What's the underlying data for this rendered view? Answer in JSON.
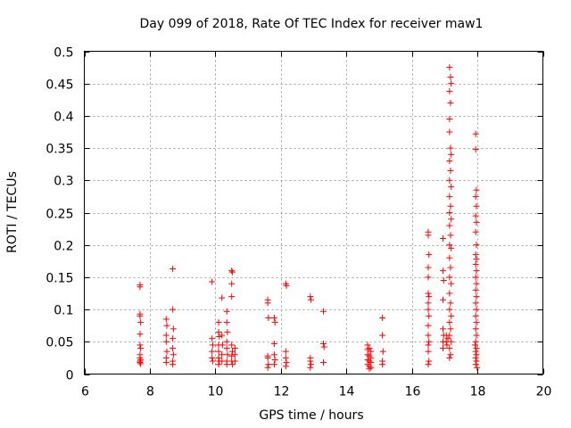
{
  "chart_data": {
    "type": "scatter",
    "title": "Day 099 of 2018, Rate Of TEC Index for receiver maw1",
    "xlabel": "GPS time / hours",
    "ylabel": "ROTI / TECUs",
    "xlim": [
      6,
      20
    ],
    "ylim": [
      0,
      0.5
    ],
    "xticks": [
      6,
      8,
      10,
      12,
      14,
      16,
      18,
      20
    ],
    "yticks": [
      0,
      0.05,
      0.1,
      0.15,
      0.2,
      0.25,
      0.3,
      0.35,
      0.4,
      0.45,
      0.5
    ],
    "xtick_labels": [
      "6",
      "8",
      "10",
      "12",
      "14",
      "16",
      "18",
      "20"
    ],
    "ytick_labels": [
      "0",
      "0.05",
      "0.1",
      "0.15",
      "0.2",
      "0.25",
      "0.3",
      "0.35",
      "0.4",
      "0.45",
      "0.5"
    ],
    "grid": true,
    "marker": "+",
    "series": [
      {
        "name": "maw1",
        "color": "#ff0000",
        "points": [
          [
            7.7,
            0.135
          ],
          [
            7.7,
            0.138
          ],
          [
            7.7,
            0.093
          ],
          [
            7.7,
            0.09
          ],
          [
            7.72,
            0.08
          ],
          [
            7.7,
            0.062
          ],
          [
            7.7,
            0.045
          ],
          [
            7.72,
            0.04
          ],
          [
            7.7,
            0.03
          ],
          [
            7.7,
            0.025
          ],
          [
            7.72,
            0.022
          ],
          [
            7.7,
            0.02
          ],
          [
            7.7,
            0.018
          ],
          [
            7.72,
            0.016
          ],
          [
            8.5,
            0.085
          ],
          [
            8.52,
            0.075
          ],
          [
            8.5,
            0.06
          ],
          [
            8.5,
            0.05
          ],
          [
            8.52,
            0.035
          ],
          [
            8.5,
            0.025
          ],
          [
            8.5,
            0.018
          ],
          [
            8.7,
            0.163
          ],
          [
            8.7,
            0.1
          ],
          [
            8.72,
            0.07
          ],
          [
            8.7,
            0.055
          ],
          [
            8.7,
            0.04
          ],
          [
            8.72,
            0.03
          ],
          [
            8.7,
            0.02
          ],
          [
            8.7,
            0.015
          ],
          [
            9.9,
            0.143
          ],
          [
            9.9,
            0.055
          ],
          [
            9.92,
            0.045
          ],
          [
            9.9,
            0.035
          ],
          [
            9.9,
            0.025
          ],
          [
            9.92,
            0.02
          ],
          [
            10.1,
            0.08
          ],
          [
            10.1,
            0.065
          ],
          [
            10.12,
            0.058
          ],
          [
            10.1,
            0.045
          ],
          [
            10.1,
            0.035
          ],
          [
            10.1,
            0.025
          ],
          [
            10.12,
            0.02
          ],
          [
            10.1,
            0.015
          ],
          [
            10.2,
            0.118
          ],
          [
            10.2,
            0.06
          ],
          [
            10.22,
            0.045
          ],
          [
            10.2,
            0.03
          ],
          [
            10.2,
            0.02
          ],
          [
            10.35,
            0.097
          ],
          [
            10.35,
            0.08
          ],
          [
            10.37,
            0.065
          ],
          [
            10.35,
            0.05
          ],
          [
            10.35,
            0.04
          ],
          [
            10.37,
            0.03
          ],
          [
            10.35,
            0.02
          ],
          [
            10.35,
            0.015
          ],
          [
            10.5,
            0.16
          ],
          [
            10.52,
            0.158
          ],
          [
            10.5,
            0.14
          ],
          [
            10.5,
            0.12
          ],
          [
            10.5,
            0.045
          ],
          [
            10.52,
            0.035
          ],
          [
            10.5,
            0.028
          ],
          [
            10.5,
            0.02
          ],
          [
            10.52,
            0.015
          ],
          [
            10.6,
            0.04
          ],
          [
            10.6,
            0.03
          ],
          [
            10.6,
            0.02
          ],
          [
            11.6,
            0.115
          ],
          [
            11.6,
            0.11
          ],
          [
            11.62,
            0.087
          ],
          [
            11.6,
            0.028
          ],
          [
            11.6,
            0.025
          ],
          [
            11.62,
            0.015
          ],
          [
            11.6,
            0.01
          ],
          [
            11.8,
            0.087
          ],
          [
            11.82,
            0.08
          ],
          [
            11.8,
            0.047
          ],
          [
            11.8,
            0.03
          ],
          [
            11.82,
            0.022
          ],
          [
            11.8,
            0.015
          ],
          [
            12.15,
            0.14
          ],
          [
            12.17,
            0.137
          ],
          [
            12.15,
            0.035
          ],
          [
            12.15,
            0.025
          ],
          [
            12.17,
            0.018
          ],
          [
            12.15,
            0.012
          ],
          [
            12.9,
            0.12
          ],
          [
            12.92,
            0.115
          ],
          [
            12.9,
            0.025
          ],
          [
            12.9,
            0.02
          ],
          [
            12.92,
            0.015
          ],
          [
            12.9,
            0.01
          ],
          [
            13.3,
            0.097
          ],
          [
            13.3,
            0.047
          ],
          [
            13.32,
            0.042
          ],
          [
            13.3,
            0.018
          ],
          [
            14.65,
            0.045
          ],
          [
            14.7,
            0.04
          ],
          [
            14.75,
            0.035
          ],
          [
            14.65,
            0.03
          ],
          [
            14.7,
            0.028
          ],
          [
            14.75,
            0.025
          ],
          [
            14.65,
            0.022
          ],
          [
            14.7,
            0.02
          ],
          [
            14.75,
            0.018
          ],
          [
            14.65,
            0.015
          ],
          [
            14.7,
            0.012
          ],
          [
            14.75,
            0.01
          ],
          [
            14.7,
            0.008
          ],
          [
            14.65,
            0.038
          ],
          [
            15.1,
            0.087
          ],
          [
            15.1,
            0.06
          ],
          [
            15.12,
            0.035
          ],
          [
            15.1,
            0.02
          ],
          [
            15.1,
            0.015
          ],
          [
            16.5,
            0.22
          ],
          [
            16.5,
            0.215
          ],
          [
            16.52,
            0.185
          ],
          [
            16.5,
            0.165
          ],
          [
            16.5,
            0.15
          ],
          [
            16.5,
            0.125
          ],
          [
            16.52,
            0.12
          ],
          [
            16.5,
            0.11
          ],
          [
            16.5,
            0.1
          ],
          [
            16.52,
            0.09
          ],
          [
            16.5,
            0.075
          ],
          [
            16.5,
            0.06
          ],
          [
            16.52,
            0.05
          ],
          [
            16.5,
            0.045
          ],
          [
            16.5,
            0.035
          ],
          [
            16.52,
            0.02
          ],
          [
            16.5,
            0.015
          ],
          [
            16.95,
            0.21
          ],
          [
            16.95,
            0.16
          ],
          [
            16.97,
            0.145
          ],
          [
            16.95,
            0.115
          ],
          [
            16.95,
            0.07
          ],
          [
            16.97,
            0.06
          ],
          [
            16.95,
            0.05
          ],
          [
            16.95,
            0.04
          ],
          [
            17.15,
            0.475
          ],
          [
            17.18,
            0.46
          ],
          [
            17.2,
            0.45
          ],
          [
            17.15,
            0.438
          ],
          [
            17.18,
            0.42
          ],
          [
            17.15,
            0.395
          ],
          [
            17.15,
            0.375
          ],
          [
            17.18,
            0.35
          ],
          [
            17.2,
            0.34
          ],
          [
            17.15,
            0.33
          ],
          [
            17.18,
            0.315
          ],
          [
            17.15,
            0.3
          ],
          [
            17.2,
            0.29
          ],
          [
            17.15,
            0.275
          ],
          [
            17.18,
            0.26
          ],
          [
            17.15,
            0.25
          ],
          [
            17.2,
            0.24
          ],
          [
            17.15,
            0.23
          ],
          [
            17.18,
            0.215
          ],
          [
            17.15,
            0.2
          ],
          [
            17.2,
            0.195
          ],
          [
            17.15,
            0.18
          ],
          [
            17.18,
            0.165
          ],
          [
            17.15,
            0.15
          ],
          [
            17.2,
            0.14
          ],
          [
            17.15,
            0.125
          ],
          [
            17.18,
            0.11
          ],
          [
            17.15,
            0.1
          ],
          [
            17.2,
            0.09
          ],
          [
            17.15,
            0.08
          ],
          [
            17.18,
            0.07
          ],
          [
            17.15,
            0.06
          ],
          [
            17.2,
            0.05
          ],
          [
            17.15,
            0.04
          ],
          [
            17.18,
            0.03
          ],
          [
            17.15,
            0.025
          ],
          [
            17.05,
            0.06
          ],
          [
            17.05,
            0.05
          ],
          [
            17.07,
            0.045
          ],
          [
            17.1,
            0.055
          ],
          [
            17.95,
            0.372
          ],
          [
            17.95,
            0.348
          ],
          [
            17.97,
            0.285
          ],
          [
            17.95,
            0.275
          ],
          [
            17.97,
            0.26
          ],
          [
            17.95,
            0.245
          ],
          [
            17.97,
            0.235
          ],
          [
            17.95,
            0.22
          ],
          [
            17.97,
            0.2
          ],
          [
            17.95,
            0.185
          ],
          [
            17.97,
            0.178
          ],
          [
            17.95,
            0.17
          ],
          [
            17.97,
            0.16
          ],
          [
            17.95,
            0.15
          ],
          [
            17.97,
            0.14
          ],
          [
            17.95,
            0.13
          ],
          [
            17.97,
            0.12
          ],
          [
            17.95,
            0.11
          ],
          [
            17.97,
            0.1
          ],
          [
            17.95,
            0.09
          ],
          [
            17.97,
            0.08
          ],
          [
            17.95,
            0.07
          ],
          [
            17.97,
            0.06
          ],
          [
            17.95,
            0.05
          ],
          [
            17.97,
            0.04
          ],
          [
            17.95,
            0.035
          ],
          [
            17.97,
            0.03
          ],
          [
            17.95,
            0.025
          ],
          [
            17.97,
            0.02
          ],
          [
            17.95,
            0.015
          ],
          [
            17.99,
            0.01
          ],
          [
            17.93,
            0.045
          ]
        ]
      }
    ]
  }
}
